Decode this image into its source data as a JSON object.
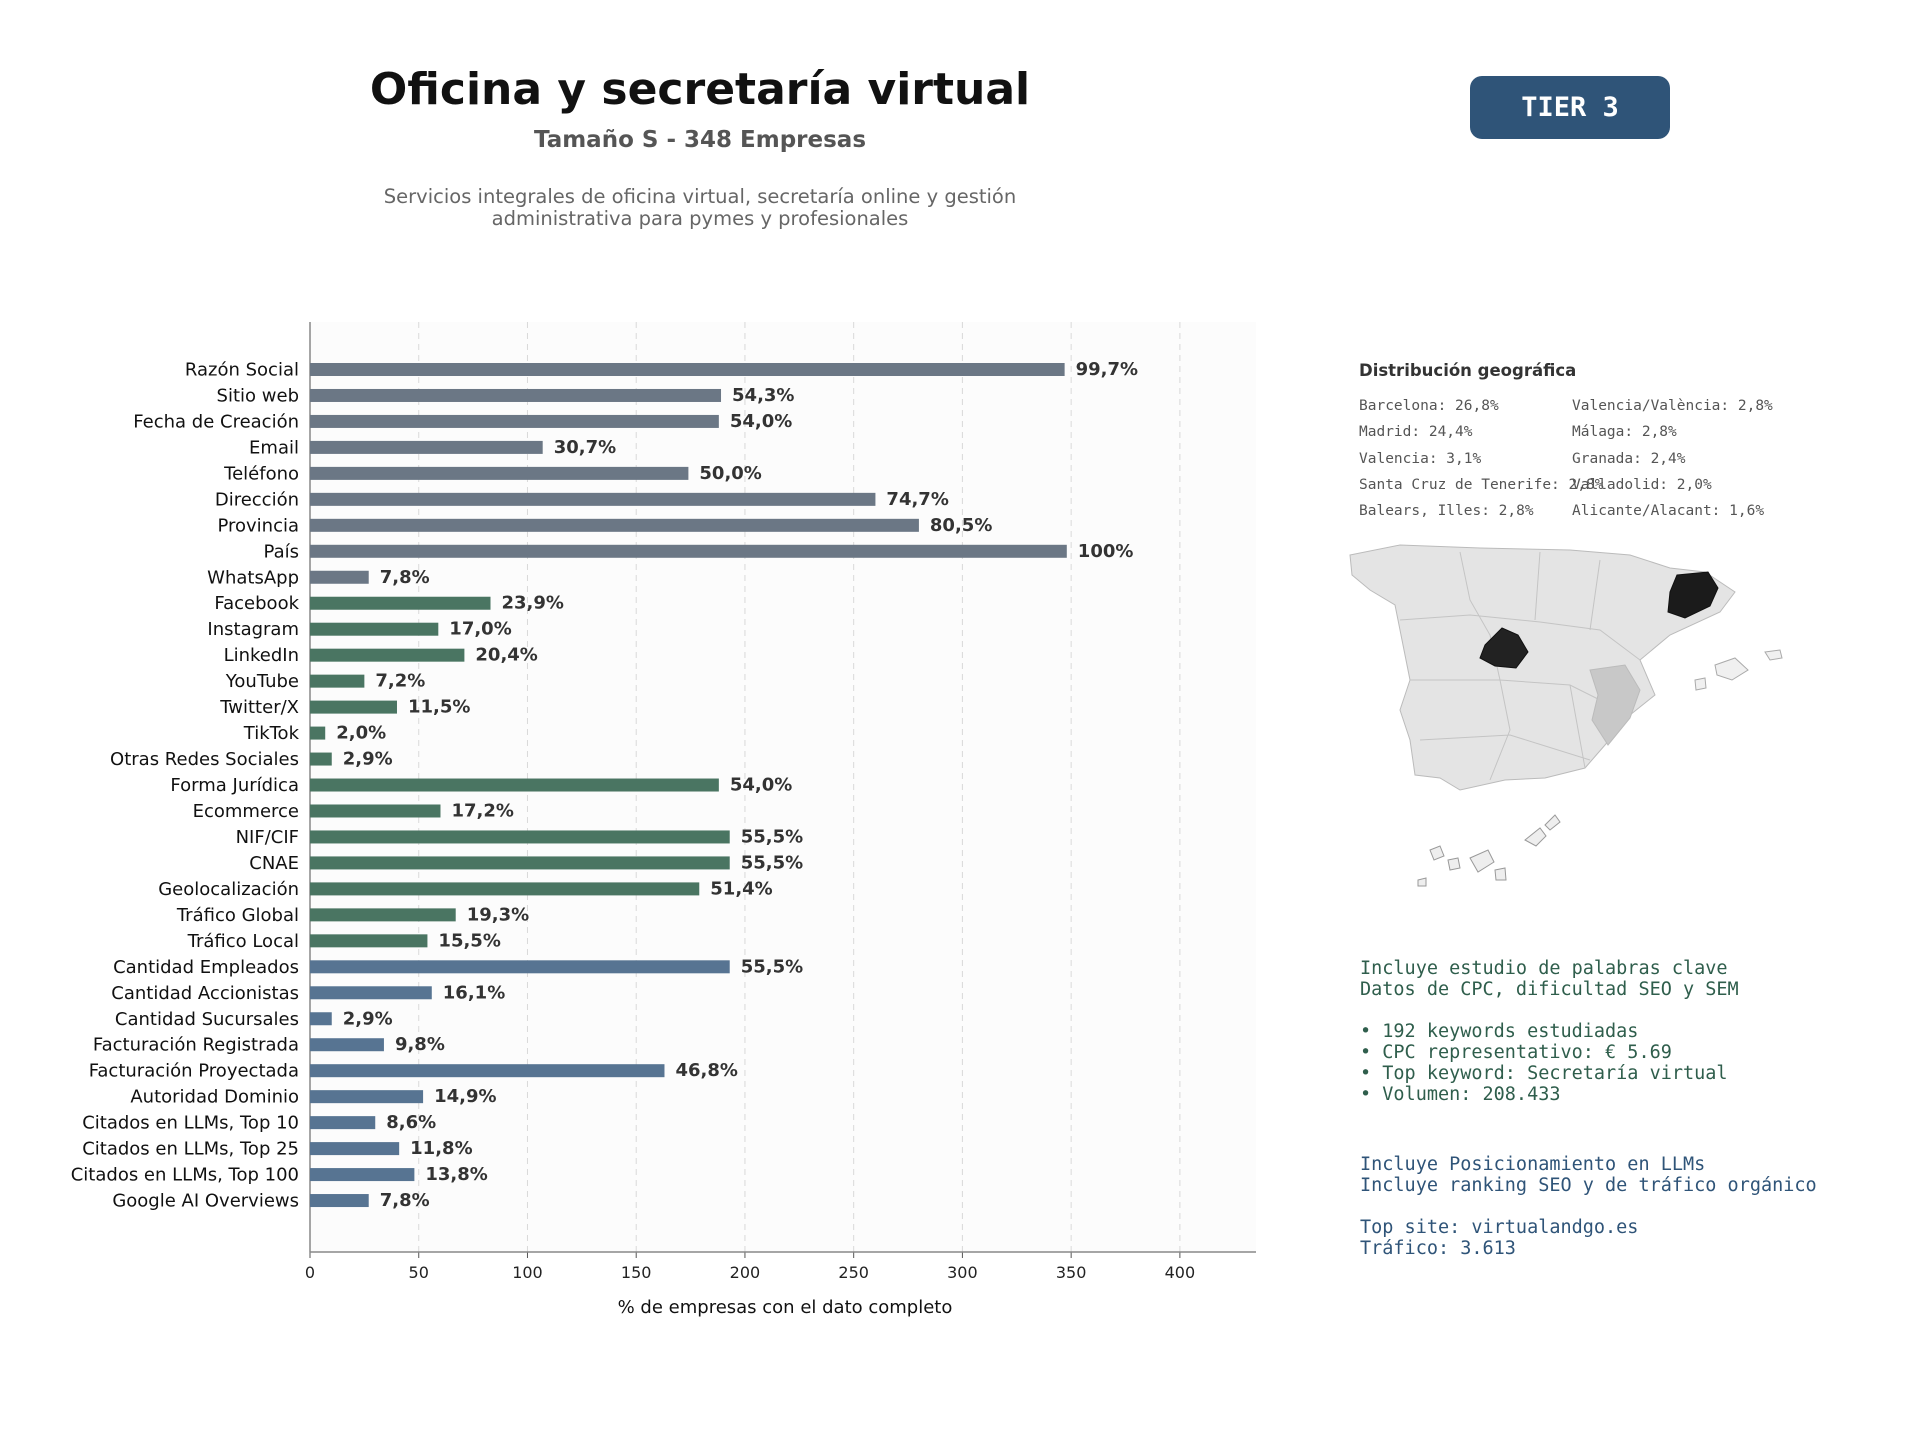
{
  "header": {
    "title": "Oficina y secretaría virtual",
    "subtitle": "Tamaño S - 348 Empresas",
    "description_line1": "Servicios integrales de oficina virtual, secretaría online y gestión",
    "description_line2": "administrativa para pymes y profesionales",
    "tier_label": "TIER 3"
  },
  "chart_data": {
    "type": "bar",
    "orientation": "horizontal",
    "xlabel": "% de empresas con el dato completo",
    "xlim": [
      0,
      435
    ],
    "xticks": [
      0,
      50,
      100,
      150,
      200,
      250,
      300,
      350,
      400
    ],
    "grid": "vertical dashed",
    "group_colors": {
      "basic": "#6b7785",
      "digital": "#4a7562",
      "business": "#577492"
    },
    "bars": [
      {
        "category": "Razón Social",
        "value": 347,
        "label": "99,7%",
        "group": "basic"
      },
      {
        "category": "Sitio web",
        "value": 189,
        "label": "54,3%",
        "group": "basic"
      },
      {
        "category": "Fecha de Creación",
        "value": 188,
        "label": "54,0%",
        "group": "basic"
      },
      {
        "category": "Email",
        "value": 107,
        "label": "30,7%",
        "group": "basic"
      },
      {
        "category": "Teléfono",
        "value": 174,
        "label": "50,0%",
        "group": "basic"
      },
      {
        "category": "Dirección",
        "value": 260,
        "label": "74,7%",
        "group": "basic"
      },
      {
        "category": "Provincia",
        "value": 280,
        "label": "80,5%",
        "group": "basic"
      },
      {
        "category": "País",
        "value": 348,
        "label": "100%",
        "group": "basic"
      },
      {
        "category": "WhatsApp",
        "value": 27,
        "label": "7,8%",
        "group": "basic"
      },
      {
        "category": "Facebook",
        "value": 83,
        "label": "23,9%",
        "group": "digital"
      },
      {
        "category": "Instagram",
        "value": 59,
        "label": "17,0%",
        "group": "digital"
      },
      {
        "category": "LinkedIn",
        "value": 71,
        "label": "20,4%",
        "group": "digital"
      },
      {
        "category": "YouTube",
        "value": 25,
        "label": "7,2%",
        "group": "digital"
      },
      {
        "category": "Twitter/X",
        "value": 40,
        "label": "11,5%",
        "group": "digital"
      },
      {
        "category": "TikTok",
        "value": 7,
        "label": "2,0%",
        "group": "digital"
      },
      {
        "category": "Otras Redes Sociales",
        "value": 10,
        "label": "2,9%",
        "group": "digital"
      },
      {
        "category": "Forma Jurídica",
        "value": 188,
        "label": "54,0%",
        "group": "digital"
      },
      {
        "category": "Ecommerce",
        "value": 60,
        "label": "17,2%",
        "group": "digital"
      },
      {
        "category": "NIF/CIF",
        "value": 193,
        "label": "55,5%",
        "group": "digital"
      },
      {
        "category": "CNAE",
        "value": 193,
        "label": "55,5%",
        "group": "digital"
      },
      {
        "category": "Geolocalización",
        "value": 179,
        "label": "51,4%",
        "group": "digital"
      },
      {
        "category": "Tráfico Global",
        "value": 67,
        "label": "19,3%",
        "group": "digital"
      },
      {
        "category": "Tráfico Local",
        "value": 54,
        "label": "15,5%",
        "group": "digital"
      },
      {
        "category": "Cantidad Empleados",
        "value": 193,
        "label": "55,5%",
        "group": "business"
      },
      {
        "category": "Cantidad Accionistas",
        "value": 56,
        "label": "16,1%",
        "group": "business"
      },
      {
        "category": "Cantidad Sucursales",
        "value": 10,
        "label": "2,9%",
        "group": "business"
      },
      {
        "category": "Facturación Registrada",
        "value": 34,
        "label": "9,8%",
        "group": "business"
      },
      {
        "category": "Facturación Proyectada",
        "value": 163,
        "label": "46,8%",
        "group": "business"
      },
      {
        "category": "Autoridad Dominio",
        "value": 52,
        "label": "14,9%",
        "group": "business"
      },
      {
        "category": "Citados en LLMs, Top 10",
        "value": 30,
        "label": "8,6%",
        "group": "business"
      },
      {
        "category": "Citados en LLMs, Top 25",
        "value": 41,
        "label": "11,8%",
        "group": "business"
      },
      {
        "category": "Citados en LLMs, Top 100",
        "value": 48,
        "label": "13,8%",
        "group": "business"
      },
      {
        "category": "Google AI Overviews",
        "value": 27,
        "label": "7,8%",
        "group": "business"
      }
    ]
  },
  "geo": {
    "title": "Distribución geográfica",
    "col1": [
      "Barcelona: 26,8%",
      "Madrid: 24,4%",
      "Valencia: 3,1%",
      "Santa Cruz de Tenerife: 2,8%",
      "Balears, Illes: 2,8%"
    ],
    "col2": [
      "Valencia/València: 2,8%",
      "Málaga: 2,8%",
      "Granada: 2,4%",
      "Valladolid: 2,0%",
      "Alicante/Alacant: 1,6%"
    ]
  },
  "seo": {
    "line1": "Incluye estudio de palabras clave",
    "line2": "Datos de CPC, dificultad SEO y SEM",
    "b1": "• 192 keywords estudiadas",
    "b2": "• CPC representativo: € 5.69",
    "b3": "• Top keyword: Secretaría virtual",
    "b4": "• Volumen: 208.433"
  },
  "llm": {
    "line1": "Incluye Posicionamiento en LLMs",
    "line2": "Incluye ranking SEO y de tráfico orgánico",
    "line3": "Top site: virtualandgo.es",
    "line4": "Tráfico: 3.613"
  }
}
